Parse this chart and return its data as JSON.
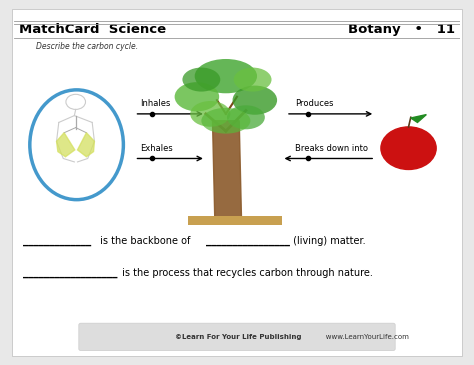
{
  "bg_color": "#e8e8e8",
  "page_bg": "#ffffff",
  "title_left": "MatchCard  Science",
  "title_right": "Botany   •   11",
  "subtitle": "Describe the carbon cycle.",
  "inhales_label": "Inhales",
  "exhales_label": "Exhales",
  "produces_label": "Produces",
  "breaks_label": "Breaks down into",
  "line1_part1": "_____________",
  "line1_mid": " is the backbone of  ",
  "line1_blank2": "________________",
  "line1_end": " (living) matter.",
  "line2_blank": "__________________",
  "line2_end": " is the process that recycles carbon through nature.",
  "footer_bold": "©Learn For Your Life Publishing",
  "footer_normal": "   www.LearnYourLife.com",
  "blue_ellipse_color": "#4499cc",
  "apple_color": "#cc1111",
  "apple_leaf_color": "#228B22",
  "tree_trunk_color": "#8B5A2B",
  "tree_ground_color": "#c8a050"
}
